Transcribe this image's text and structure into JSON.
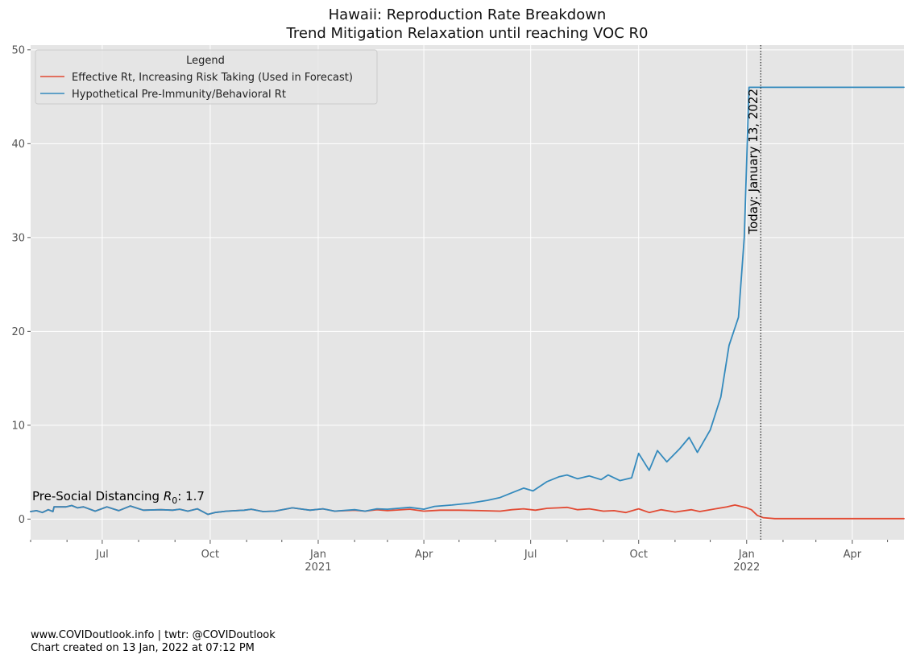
{
  "chart_data": {
    "type": "line",
    "title": "Hawaii: Reproduction Rate Breakdown",
    "subtitle": "Trend Mitigation Relaxation until reaching VOC R0",
    "xlabel": "",
    "ylabel": "",
    "xlim": [
      "2020-05-01",
      "2022-05-15"
    ],
    "ylim": [
      -2.2,
      50.5
    ],
    "grid": true,
    "legend": {
      "title": "Legend",
      "placement": "top-left"
    },
    "x_ticks": [
      {
        "date": "2020-07-01",
        "label": "Jul",
        "sub": ""
      },
      {
        "date": "2020-10-01",
        "label": "Oct",
        "sub": ""
      },
      {
        "date": "2021-01-01",
        "label": "Jan",
        "sub": "2021"
      },
      {
        "date": "2021-04-01",
        "label": "Apr",
        "sub": ""
      },
      {
        "date": "2021-07-01",
        "label": "Jul",
        "sub": ""
      },
      {
        "date": "2021-10-01",
        "label": "Oct",
        "sub": ""
      },
      {
        "date": "2022-01-01",
        "label": "Jan",
        "sub": "2022"
      },
      {
        "date": "2022-04-01",
        "label": "Apr",
        "sub": ""
      }
    ],
    "minor_ticks": [
      "2020-05-01",
      "2020-06-01",
      "2020-08-01",
      "2020-09-01",
      "2020-11-01",
      "2020-12-01",
      "2021-02-01",
      "2021-03-01",
      "2021-05-01",
      "2021-06-01",
      "2021-08-01",
      "2021-09-01",
      "2021-11-01",
      "2021-12-01",
      "2022-02-01",
      "2022-03-01",
      "2022-05-01"
    ],
    "y_ticks": [
      0,
      10,
      20,
      30,
      40,
      50
    ],
    "series": [
      {
        "name": "Effective Rt, Increasing Risk Taking (Used in Forecast)",
        "color": "#e24a33",
        "points": [
          [
            "2020-05-01",
            0.8
          ],
          [
            "2020-05-06",
            0.9
          ],
          [
            "2020-05-11",
            0.7
          ],
          [
            "2020-05-16",
            1.0
          ],
          [
            "2020-05-20",
            0.8
          ],
          [
            "2020-05-21",
            1.3
          ],
          [
            "2020-05-31",
            1.3
          ],
          [
            "2020-06-05",
            1.45
          ],
          [
            "2020-06-10",
            1.2
          ],
          [
            "2020-06-15",
            1.3
          ],
          [
            "2020-06-25",
            0.85
          ],
          [
            "2020-07-05",
            1.3
          ],
          [
            "2020-07-15",
            0.9
          ],
          [
            "2020-07-25",
            1.4
          ],
          [
            "2020-08-05",
            0.95
          ],
          [
            "2020-08-20",
            1.0
          ],
          [
            "2020-08-30",
            0.95
          ],
          [
            "2020-09-05",
            1.05
          ],
          [
            "2020-09-12",
            0.85
          ],
          [
            "2020-09-20",
            1.1
          ],
          [
            "2020-09-29",
            0.5
          ],
          [
            "2020-10-05",
            0.7
          ],
          [
            "2020-10-15",
            0.85
          ],
          [
            "2020-10-30",
            0.95
          ],
          [
            "2020-11-05",
            1.05
          ],
          [
            "2020-11-15",
            0.8
          ],
          [
            "2020-11-25",
            0.85
          ],
          [
            "2020-12-10",
            1.2
          ],
          [
            "2020-12-25",
            0.95
          ],
          [
            "2021-01-05",
            1.1
          ],
          [
            "2021-01-15",
            0.85
          ],
          [
            "2021-02-01",
            0.95
          ],
          [
            "2021-02-10",
            0.85
          ],
          [
            "2021-02-20",
            1.0
          ],
          [
            "2021-03-01",
            0.9
          ],
          [
            "2021-03-20",
            1.05
          ],
          [
            "2021-04-01",
            0.85
          ],
          [
            "2021-04-15",
            0.95
          ],
          [
            "2021-05-01",
            0.95
          ],
          [
            "2021-05-20",
            0.9
          ],
          [
            "2021-06-05",
            0.85
          ],
          [
            "2021-06-15",
            1.0
          ],
          [
            "2021-06-25",
            1.1
          ],
          [
            "2021-07-05",
            0.95
          ],
          [
            "2021-07-15",
            1.15
          ],
          [
            "2021-07-25",
            1.2
          ],
          [
            "2021-08-01",
            1.25
          ],
          [
            "2021-08-10",
            1.0
          ],
          [
            "2021-08-20",
            1.1
          ],
          [
            "2021-09-01",
            0.85
          ],
          [
            "2021-09-10",
            0.9
          ],
          [
            "2021-09-20",
            0.7
          ],
          [
            "2021-10-01",
            1.1
          ],
          [
            "2021-10-10",
            0.7
          ],
          [
            "2021-10-20",
            1.0
          ],
          [
            "2021-11-01",
            0.75
          ],
          [
            "2021-11-15",
            1.0
          ],
          [
            "2021-11-22",
            0.8
          ],
          [
            "2021-12-01",
            1.0
          ],
          [
            "2021-12-15",
            1.3
          ],
          [
            "2021-12-22",
            1.5
          ],
          [
            "2022-01-01",
            1.2
          ],
          [
            "2022-01-05",
            1.0
          ],
          [
            "2022-01-10",
            0.4
          ],
          [
            "2022-01-15",
            0.15
          ],
          [
            "2022-01-25",
            0.05
          ],
          [
            "2022-02-15",
            0.05
          ],
          [
            "2022-05-15",
            0.05
          ]
        ]
      },
      {
        "name": "Hypothetical Pre-Immunity/Behavioral Rt",
        "color": "#348abd",
        "points": [
          [
            "2020-05-01",
            0.8
          ],
          [
            "2020-05-06",
            0.9
          ],
          [
            "2020-05-11",
            0.7
          ],
          [
            "2020-05-16",
            1.0
          ],
          [
            "2020-05-20",
            0.8
          ],
          [
            "2020-05-21",
            1.3
          ],
          [
            "2020-05-31",
            1.3
          ],
          [
            "2020-06-05",
            1.45
          ],
          [
            "2020-06-10",
            1.2
          ],
          [
            "2020-06-15",
            1.3
          ],
          [
            "2020-06-25",
            0.85
          ],
          [
            "2020-07-05",
            1.3
          ],
          [
            "2020-07-15",
            0.9
          ],
          [
            "2020-07-25",
            1.4
          ],
          [
            "2020-08-05",
            0.95
          ],
          [
            "2020-08-20",
            1.0
          ],
          [
            "2020-08-30",
            0.95
          ],
          [
            "2020-09-05",
            1.05
          ],
          [
            "2020-09-12",
            0.85
          ],
          [
            "2020-09-20",
            1.1
          ],
          [
            "2020-09-29",
            0.5
          ],
          [
            "2020-10-05",
            0.7
          ],
          [
            "2020-10-15",
            0.85
          ],
          [
            "2020-10-30",
            0.95
          ],
          [
            "2020-11-05",
            1.05
          ],
          [
            "2020-11-15",
            0.8
          ],
          [
            "2020-11-25",
            0.85
          ],
          [
            "2020-12-10",
            1.2
          ],
          [
            "2020-12-25",
            0.95
          ],
          [
            "2021-01-05",
            1.1
          ],
          [
            "2021-01-15",
            0.85
          ],
          [
            "2021-02-01",
            1.0
          ],
          [
            "2021-02-10",
            0.85
          ],
          [
            "2021-02-20",
            1.1
          ],
          [
            "2021-03-01",
            1.05
          ],
          [
            "2021-03-20",
            1.25
          ],
          [
            "2021-04-01",
            1.05
          ],
          [
            "2021-04-10",
            1.35
          ],
          [
            "2021-04-25",
            1.5
          ],
          [
            "2021-05-10",
            1.7
          ],
          [
            "2021-05-25",
            2.0
          ],
          [
            "2021-06-05",
            2.3
          ],
          [
            "2021-06-15",
            2.8
          ],
          [
            "2021-06-25",
            3.3
          ],
          [
            "2021-07-03",
            3.0
          ],
          [
            "2021-07-15",
            4.0
          ],
          [
            "2021-07-25",
            4.5
          ],
          [
            "2021-08-01",
            4.7
          ],
          [
            "2021-08-10",
            4.3
          ],
          [
            "2021-08-20",
            4.6
          ],
          [
            "2021-08-30",
            4.2
          ],
          [
            "2021-09-05",
            4.7
          ],
          [
            "2021-09-15",
            4.1
          ],
          [
            "2021-09-25",
            4.4
          ],
          [
            "2021-10-01",
            7.0
          ],
          [
            "2021-10-10",
            5.2
          ],
          [
            "2021-10-17",
            7.3
          ],
          [
            "2021-10-25",
            6.1
          ],
          [
            "2021-11-05",
            7.5
          ],
          [
            "2021-11-13",
            8.7
          ],
          [
            "2021-11-20",
            7.1
          ],
          [
            "2021-12-01",
            9.5
          ],
          [
            "2021-12-10",
            13.0
          ],
          [
            "2021-12-17",
            18.5
          ],
          [
            "2021-12-25",
            21.5
          ],
          [
            "2021-12-30",
            30.0
          ],
          [
            "2022-01-03",
            46.0
          ],
          [
            "2022-05-15",
            46.0
          ]
        ]
      }
    ],
    "vline": {
      "date": "2022-01-13",
      "label": "Today: January 13, 2022"
    },
    "annotation": {
      "prefix": "Pre-Social Distancing ",
      "symbol": "R",
      "sub": "0",
      "suffix": ": 1.7"
    }
  },
  "footer": {
    "line1": "www.COVIDoutlook.info | twtr: @COVIDoutlook",
    "line2": "Chart created on 13 Jan, 2022 at 07:12 PM"
  }
}
